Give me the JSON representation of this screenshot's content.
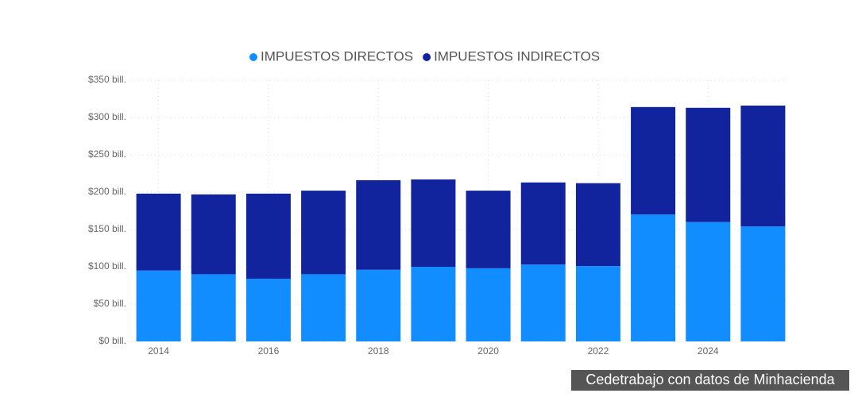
{
  "chart_data": {
    "type": "stacked_bar",
    "categories": [
      "2014",
      null,
      "2016",
      null,
      "2018",
      null,
      "2020",
      null,
      "2022",
      null,
      "2024",
      null
    ],
    "series": [
      {
        "name": "IMPUESTOS DIRECTOS",
        "color": "#118dff",
        "values": [
          95,
          90,
          84,
          90,
          96,
          100,
          98,
          103,
          101,
          170,
          160,
          154
        ]
      },
      {
        "name": "IMPUESTOS INDIRECTOS",
        "color": "#12239e",
        "values": [
          103,
          107,
          114,
          112,
          120,
          117,
          104,
          110,
          111,
          144,
          153,
          162
        ]
      }
    ],
    "ylim": [
      0,
      350
    ],
    "yticks": [
      {
        "value": 0,
        "label": "$0 bill."
      },
      {
        "value": 50,
        "label": "$50 bill."
      },
      {
        "value": 100,
        "label": "$100 bill."
      },
      {
        "value": 150,
        "label": "$150 bill."
      },
      {
        "value": 200,
        "label": "$200 bill."
      },
      {
        "value": 250,
        "label": "$250 bill."
      },
      {
        "value": 300,
        "label": "$300 bill."
      },
      {
        "value": 350,
        "label": "$350 bill."
      }
    ],
    "grid": true,
    "source": "Cedetrabajo con datos de Minhacienda"
  }
}
